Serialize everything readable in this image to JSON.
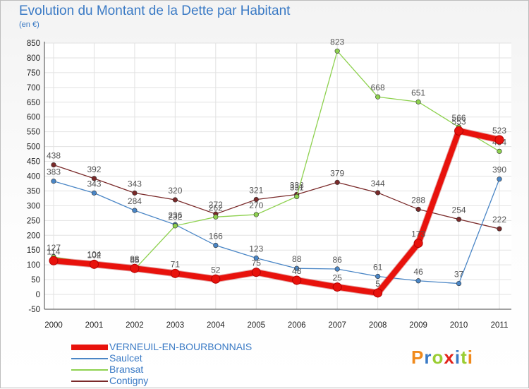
{
  "title": "Evolution du Montant de la Dette par Habitant",
  "subtitle": "(en €)",
  "logo": {
    "text": "Proxiti",
    "colors": [
      "#f08a1c",
      "#3a7ac5",
      "#9acd32",
      "#e2231a",
      "#3a7ac5",
      "#9acd32",
      "#f08a1c"
    ]
  },
  "chart_data": {
    "type": "line",
    "title": "Evolution du Montant de la Dette par Habitant",
    "subtitle": "(en €)",
    "categories": [
      "2000",
      "2001",
      "2002",
      "2003",
      "2004",
      "2005",
      "2006",
      "2007",
      "2008",
      "2009",
      "2010",
      "2011"
    ],
    "ylim": [
      -50,
      850
    ],
    "yticks": [
      -50,
      0,
      50,
      100,
      150,
      200,
      250,
      300,
      350,
      400,
      450,
      500,
      550,
      600,
      650,
      700,
      750,
      800,
      850
    ],
    "grid": true,
    "legend": "bottom-left",
    "series": [
      {
        "name": "Contigny",
        "color": "#7a2a2a",
        "values": [
          438,
          392,
          343,
          320,
          272,
          321,
          338,
          379,
          344,
          288,
          254,
          222
        ]
      },
      {
        "name": "Saulcet",
        "color": "#4a86c6",
        "values": [
          383,
          343,
          284,
          236,
          166,
          123,
          88,
          86,
          61,
          46,
          37,
          390
        ]
      },
      {
        "name": "Bransat",
        "color": "#8ed14f",
        "values": [
          127,
          104,
          85,
          232,
          262,
          270,
          331,
          823,
          668,
          651,
          566,
          484
        ]
      },
      {
        "name": "VERNEUIL-EN-BOURBONNAIS",
        "color": "#e8120c",
        "values": [
          114,
          102,
          88,
          71,
          52,
          75,
          48,
          25,
          5,
          173,
          553,
          523
        ]
      }
    ],
    "legend_order": [
      "VERNEUIL-EN-BOURBONNAIS",
      "Saulcet",
      "Bransat",
      "Contigny"
    ]
  }
}
